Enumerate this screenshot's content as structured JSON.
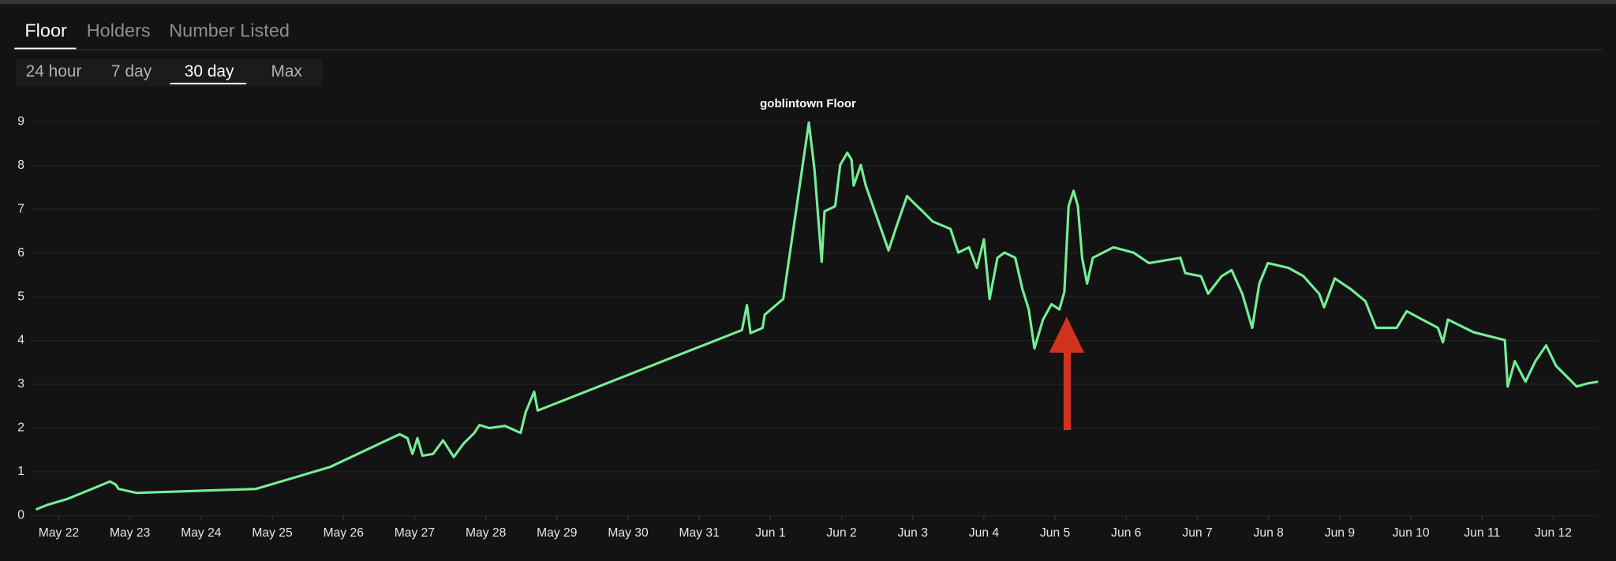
{
  "tabs": [
    "Floor",
    "Holders",
    "Number Listed"
  ],
  "ranges": [
    "24 hour",
    "7 day",
    "30 day",
    "Max"
  ],
  "chart_data": {
    "type": "line",
    "title": "goblintown Floor",
    "color": "#74ee96",
    "grid": true,
    "xlim": [
      -0.4,
      21.65
    ],
    "ylim": [
      0,
      9
    ],
    "yticks": [
      0,
      1,
      2,
      3,
      4,
      5,
      6,
      7,
      8,
      9
    ],
    "xticks": [
      {
        "value": 0,
        "label": "May 22"
      },
      {
        "value": 1,
        "label": "May 23"
      },
      {
        "value": 2,
        "label": "May 24"
      },
      {
        "value": 3,
        "label": "May 25"
      },
      {
        "value": 4,
        "label": "May 26"
      },
      {
        "value": 5,
        "label": "May 27"
      },
      {
        "value": 6,
        "label": "May 28"
      },
      {
        "value": 7,
        "label": "May 29"
      },
      {
        "value": 8,
        "label": "May 30"
      },
      {
        "value": 9,
        "label": "May 31"
      },
      {
        "value": 10,
        "label": "Jun 1"
      },
      {
        "value": 11,
        "label": "Jun 2"
      },
      {
        "value": 12,
        "label": "Jun 3"
      },
      {
        "value": 13,
        "label": "Jun 4"
      },
      {
        "value": 14,
        "label": "Jun 5"
      },
      {
        "value": 15,
        "label": "Jun 6"
      },
      {
        "value": 16,
        "label": "Jun 7"
      },
      {
        "value": 17,
        "label": "Jun 8"
      },
      {
        "value": 18,
        "label": "Jun 9"
      },
      {
        "value": 19,
        "label": "Jun 10"
      },
      {
        "value": 20,
        "label": "Jun 11"
      },
      {
        "value": 21,
        "label": "Jun 12"
      }
    ],
    "x": [
      -0.32,
      -0.17,
      0.12,
      0.72,
      0.8,
      0.84,
      1.09,
      2.77,
      3.81,
      4.79,
      4.9,
      4.97,
      5.04,
      5.11,
      5.26,
      5.4,
      5.55,
      5.69,
      5.84,
      5.91,
      6.05,
      6.27,
      6.49,
      6.56,
      6.68,
      6.73,
      9.6,
      9.67,
      9.72,
      9.89,
      9.92,
      10.18,
      10.54,
      10.62,
      10.72,
      10.76,
      10.91,
      10.98,
      11.08,
      11.14,
      11.17,
      11.27,
      11.34,
      11.66,
      11.77,
      11.92,
      12.03,
      12.14,
      12.28,
      12.53,
      12.64,
      12.79,
      12.9,
      13.0,
      13.08,
      13.19,
      13.29,
      13.44,
      13.54,
      13.63,
      13.71,
      13.83,
      13.95,
      14.06,
      14.13,
      14.19,
      14.26,
      14.32,
      14.38,
      14.45,
      14.53,
      14.82,
      15.1,
      15.32,
      15.76,
      15.83,
      16.05,
      16.15,
      16.34,
      16.48,
      16.63,
      16.77,
      16.87,
      16.99,
      17.28,
      17.49,
      17.71,
      17.78,
      17.93,
      18.15,
      18.36,
      18.51,
      18.8,
      18.94,
      19.16,
      19.38,
      19.45,
      19.52,
      19.88,
      20.32,
      20.36,
      20.46,
      20.61,
      20.75,
      20.9,
      21.04,
      21.33,
      21.48,
      21.63
    ],
    "values": [
      0.14,
      0.24,
      0.38,
      0.78,
      0.71,
      0.61,
      0.52,
      0.61,
      1.11,
      1.86,
      1.77,
      1.41,
      1.77,
      1.37,
      1.41,
      1.72,
      1.34,
      1.65,
      1.89,
      2.07,
      2.0,
      2.05,
      1.89,
      2.36,
      2.83,
      2.4,
      4.24,
      4.81,
      4.17,
      4.29,
      4.59,
      4.95,
      8.98,
      7.89,
      5.8,
      6.95,
      7.07,
      8.01,
      8.29,
      8.13,
      7.54,
      8.01,
      7.54,
      6.06,
      6.6,
      7.3,
      7.12,
      6.95,
      6.72,
      6.55,
      6.01,
      6.13,
      5.66,
      6.31,
      4.95,
      5.89,
      6.01,
      5.89,
      5.18,
      4.71,
      3.82,
      4.48,
      4.83,
      4.71,
      5.11,
      7.07,
      7.42,
      7.07,
      5.89,
      5.3,
      5.89,
      6.13,
      6.01,
      5.77,
      5.89,
      5.54,
      5.47,
      5.07,
      5.47,
      5.61,
      5.07,
      4.29,
      5.3,
      5.77,
      5.66,
      5.47,
      5.07,
      4.76,
      5.42,
      5.18,
      4.9,
      4.29,
      4.29,
      4.67,
      4.48,
      4.29,
      3.96,
      4.48,
      4.19,
      4.01,
      2.95,
      3.53,
      3.06,
      3.53,
      3.89,
      3.42,
      2.95,
      3.02,
      3.06
    ]
  }
}
